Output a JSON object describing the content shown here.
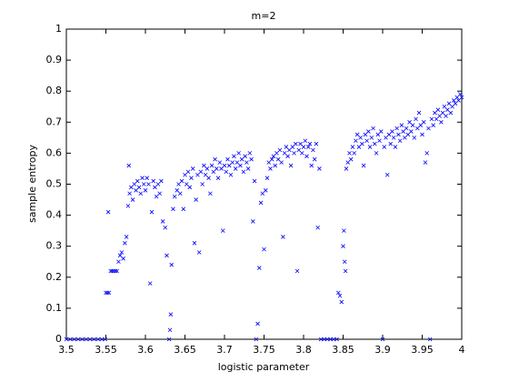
{
  "chart_data": {
    "type": "scatter",
    "title": "m=2",
    "xlabel": "logistic parameter",
    "ylabel": "sample entropy",
    "color": "#0000ff",
    "xlim": [
      3.5,
      4
    ],
    "ylim": [
      0,
      1
    ],
    "xticks": [
      3.5,
      3.55,
      3.6,
      3.65,
      3.7,
      3.75,
      3.8,
      3.85,
      3.9,
      3.95,
      4
    ],
    "yticks": [
      0,
      0.1,
      0.2,
      0.3,
      0.4,
      0.5,
      0.6,
      0.7,
      0.8,
      0.9,
      1
    ],
    "x": [
      3.5,
      3.505,
      3.51,
      3.515,
      3.52,
      3.525,
      3.53,
      3.535,
      3.54,
      3.545,
      3.549,
      3.55,
      3.552,
      3.554,
      3.553,
      3.556,
      3.558,
      3.56,
      3.562,
      3.564,
      3.566,
      3.568,
      3.57,
      3.572,
      3.574,
      3.576,
      3.578,
      3.579,
      3.58,
      3.582,
      3.584,
      3.586,
      3.588,
      3.59,
      3.592,
      3.594,
      3.596,
      3.598,
      3.6,
      3.602,
      3.604,
      3.606,
      3.608,
      3.61,
      3.612,
      3.614,
      3.616,
      3.618,
      3.62,
      3.622,
      3.625,
      3.627,
      3.63,
      3.631,
      3.632,
      3.633,
      3.635,
      3.637,
      3.64,
      3.642,
      3.644,
      3.646,
      3.648,
      3.65,
      3.652,
      3.654,
      3.656,
      3.658,
      3.66,
      3.662,
      3.664,
      3.666,
      3.668,
      3.67,
      3.672,
      3.674,
      3.676,
      3.678,
      3.68,
      3.682,
      3.684,
      3.686,
      3.688,
      3.69,
      3.692,
      3.694,
      3.696,
      3.698,
      3.7,
      3.702,
      3.704,
      3.706,
      3.708,
      3.71,
      3.712,
      3.714,
      3.716,
      3.718,
      3.72,
      3.722,
      3.724,
      3.726,
      3.728,
      3.73,
      3.732,
      3.734,
      3.736,
      3.738,
      3.74,
      3.742,
      3.744,
      3.746,
      3.748,
      3.75,
      3.752,
      3.754,
      3.756,
      3.758,
      3.76,
      3.762,
      3.764,
      3.766,
      3.768,
      3.77,
      3.772,
      3.774,
      3.776,
      3.778,
      3.78,
      3.782,
      3.784,
      3.786,
      3.788,
      3.79,
      3.792,
      3.794,
      3.796,
      3.798,
      3.8,
      3.802,
      3.804,
      3.806,
      3.808,
      3.81,
      3.812,
      3.814,
      3.816,
      3.818,
      3.82,
      3.822,
      3.826,
      3.83,
      3.834,
      3.838,
      3.842,
      3.844,
      3.846,
      3.848,
      3.85,
      3.851,
      3.852,
      3.853,
      3.854,
      3.856,
      3.858,
      3.86,
      3.862,
      3.864,
      3.866,
      3.868,
      3.87,
      3.872,
      3.874,
      3.876,
      3.878,
      3.88,
      3.882,
      3.884,
      3.886,
      3.888,
      3.89,
      3.892,
      3.894,
      3.896,
      3.898,
      3.9,
      3.902,
      3.904,
      3.906,
      3.908,
      3.91,
      3.912,
      3.914,
      3.916,
      3.918,
      3.92,
      3.922,
      3.924,
      3.926,
      3.928,
      3.93,
      3.932,
      3.934,
      3.936,
      3.938,
      3.94,
      3.942,
      3.944,
      3.946,
      3.948,
      3.95,
      3.952,
      3.954,
      3.956,
      3.958,
      3.96,
      3.962,
      3.964,
      3.966,
      3.968,
      3.97,
      3.972,
      3.974,
      3.976,
      3.978,
      3.98,
      3.982,
      3.984,
      3.986,
      3.988,
      3.99,
      3.992,
      3.994,
      3.996,
      3.998,
      4.0
    ],
    "values": [
      0,
      0,
      0,
      0,
      0,
      0,
      0,
      0,
      0,
      0,
      0,
      0.15,
      0.15,
      0.15,
      0.41,
      0.22,
      0.22,
      0.22,
      0.22,
      0.22,
      0.25,
      0.27,
      0.28,
      0.26,
      0.31,
      0.33,
      0.43,
      0.56,
      0.47,
      0.49,
      0.45,
      0.5,
      0.48,
      0.51,
      0.49,
      0.47,
      0.52,
      0.5,
      0.48,
      0.52,
      0.5,
      0.18,
      0.41,
      0.51,
      0.49,
      0.46,
      0.5,
      0.47,
      0.51,
      0.38,
      0.36,
      0.27,
      0,
      0.03,
      0.08,
      0.24,
      0.42,
      0.46,
      0.48,
      0.5,
      0.47,
      0.51,
      0.42,
      0.53,
      0.5,
      0.54,
      0.49,
      0.52,
      0.55,
      0.31,
      0.45,
      0.53,
      0.28,
      0.54,
      0.5,
      0.56,
      0.53,
      0.55,
      0.52,
      0.47,
      0.56,
      0.54,
      0.58,
      0.55,
      0.52,
      0.57,
      0.55,
      0.35,
      0.56,
      0.54,
      0.58,
      0.56,
      0.53,
      0.57,
      0.59,
      0.55,
      0.57,
      0.6,
      0.56,
      0.58,
      0.54,
      0.59,
      0.57,
      0.55,
      0.6,
      0.58,
      0.38,
      0.51,
      0,
      0.05,
      0.23,
      0.44,
      0.47,
      0.29,
      0.48,
      0.52,
      0.57,
      0.55,
      0.58,
      0.59,
      0.56,
      0.6,
      0.58,
      0.61,
      0.57,
      0.33,
      0.6,
      0.62,
      0.59,
      0.61,
      0.56,
      0.62,
      0.6,
      0.63,
      0.22,
      0.61,
      0.63,
      0.6,
      0.62,
      0.64,
      0.59,
      0.62,
      0.63,
      0.56,
      0.61,
      0.58,
      0.63,
      0.36,
      0.55,
      0,
      0,
      0,
      0,
      0,
      0,
      0.15,
      0.14,
      0.12,
      0.3,
      0.35,
      0.25,
      0.22,
      0.55,
      0.57,
      0.6,
      0.58,
      0.62,
      0.6,
      0.64,
      0.66,
      0.62,
      0.65,
      0.63,
      0.56,
      0.66,
      0.64,
      0.67,
      0.62,
      0.65,
      0.68,
      0.63,
      0.6,
      0.66,
      0.64,
      0.67,
      0,
      0.62,
      0.65,
      0.53,
      0.66,
      0.63,
      0.67,
      0.65,
      0.62,
      0.68,
      0.66,
      0.64,
      0.69,
      0.67,
      0.65,
      0.68,
      0.66,
      0.7,
      0.67,
      0.69,
      0.65,
      0.71,
      0.68,
      0.73,
      0.69,
      0.66,
      0.7,
      0.57,
      0.6,
      0.68,
      0,
      0.71,
      0.69,
      0.73,
      0.71,
      0.74,
      0.72,
      0.7,
      0.73,
      0.75,
      0.72,
      0.74,
      0.76,
      0.73,
      0.75,
      0.77,
      0.76,
      0.78,
      0.77,
      0.79,
      0.78
    ]
  }
}
